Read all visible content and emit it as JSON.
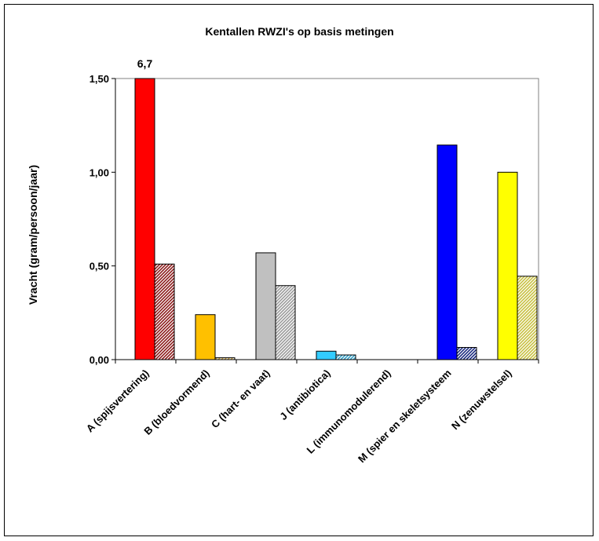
{
  "chart_data": {
    "type": "bar",
    "title": "Kentallen RWZI's op basis metingen",
    "ylabel": "Vracht (gram/persoon/jaar)",
    "xlabel": "",
    "ylim": [
      0,
      1.5
    ],
    "yticks": [
      "0,00",
      "0,50",
      "1,00",
      "1,50"
    ],
    "grid": false,
    "categories": [
      "A (spijsvertering)",
      "B (bloedvormend)",
      "C (hart- en vaat)",
      "J (antibiotica)",
      "L (immunomodulerend)",
      "M (spier en skeletsysteem",
      "N (zenuwstelsel)"
    ],
    "series": [
      {
        "values": [
          1.51,
          0.24,
          0.57,
          0.045,
          0.0,
          1.145,
          1.0
        ]
      },
      {
        "values": [
          0.51,
          0.01,
          0.395,
          0.025,
          0.0,
          0.065,
          0.445
        ]
      }
    ],
    "category_colors": [
      "#ff0000",
      "#ffc000",
      "#c0c0c0",
      "#33ccff",
      "#9999ff",
      "#0000ff",
      "#ffff00"
    ],
    "hatched_colors": [
      "#8b1a1a",
      "#c8a040",
      "#9a9a9a",
      "#33a0c8",
      "#8080c0",
      "#1a2a80",
      "#c8c040"
    ],
    "annotations": [
      {
        "category": "A (spijsvertering)",
        "text": "6,7"
      }
    ]
  }
}
